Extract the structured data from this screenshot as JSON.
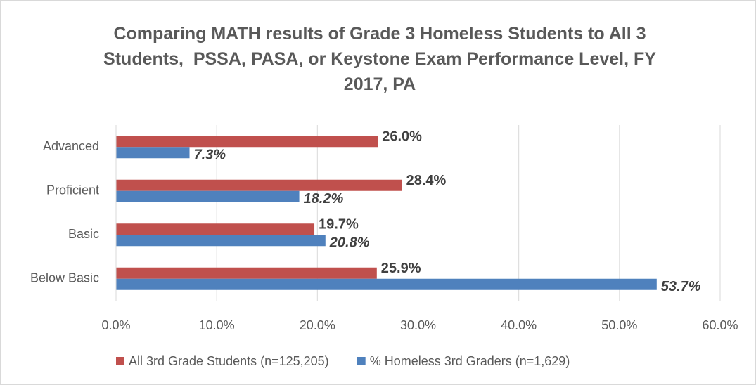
{
  "chart_data": {
    "type": "hbar",
    "title": "Comparing MATH results of Grade 3 Homeless Students to All 3 Students,  PSSA, PASA, or Keystone Exam Performance Level, FY 2017, PA",
    "categories": [
      "Advanced",
      "Proficient",
      "Basic",
      "Below Basic"
    ],
    "series": [
      {
        "name": "All 3rd Grade Students (n=125,205)",
        "color": "#c0504d",
        "values": [
          26.0,
          28.4,
          19.7,
          25.9
        ],
        "value_labels": [
          "26.0%",
          "28.4%",
          "19.7%",
          "25.9%"
        ]
      },
      {
        "name": "% Homeless 3rd Graders (n=1,629)",
        "color": "#4f81bd",
        "values": [
          7.3,
          18.2,
          20.8,
          53.7
        ],
        "value_labels": [
          "7.3%",
          "18.2%",
          "20.8%",
          "53.7%"
        ]
      }
    ],
    "xlim": [
      0,
      60
    ],
    "xticks": [
      {
        "value": 0,
        "label": "0.0%"
      },
      {
        "value": 10,
        "label": "10.0%"
      },
      {
        "value": 20,
        "label": "20.0%"
      },
      {
        "value": 30,
        "label": "30.0%"
      },
      {
        "value": 40,
        "label": "40.0%"
      },
      {
        "value": 50,
        "label": "50.0%"
      },
      {
        "value": 60,
        "label": "60.0%"
      }
    ],
    "grid": true,
    "legend": "bottom"
  }
}
